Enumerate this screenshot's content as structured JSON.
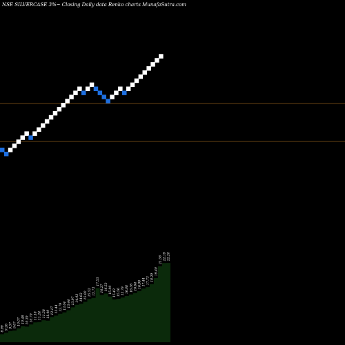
{
  "chart_data": {
    "type": "renko",
    "title": "NSE SILVERCASE 3%~  Closing Daily data  Renko  charts MunafaSutra.com",
    "colors": {
      "background": "#000000",
      "up_brick": "#ffffff",
      "down_brick": "#1e6fe0",
      "reference_line": "#8a5a1a",
      "volume_fill": "#0b2a0b",
      "volume_top": "#000000"
    },
    "brick_directions": [
      "down",
      "down",
      "up",
      "up",
      "up",
      "up",
      "up",
      "down",
      "up",
      "up",
      "up",
      "up",
      "up",
      "up",
      "up",
      "up",
      "up",
      "up",
      "up",
      "up",
      "down",
      "up",
      "up",
      "down",
      "down",
      "down",
      "down",
      "up",
      "up",
      "up",
      "down",
      "up",
      "up",
      "up",
      "up",
      "up",
      "up",
      "up",
      "up",
      "up"
    ],
    "reference_lines": [
      150,
      205
    ],
    "volume_labels": [
      "8.99",
      "9.26",
      "9.57",
      "9.67",
      "10.07",
      "10.48",
      "10.39",
      "10.79",
      "11.18",
      "11.24",
      "11.58",
      "11.49",
      "12.17",
      "12.44",
      "12.79",
      "13.04",
      "13.44",
      "13.97",
      "14.43",
      "14.63",
      "15.00",
      "15.52",
      "15.73",
      "17.53",
      "16.27",
      "16.53",
      "15.99",
      "15.43",
      "15.56",
      "15.79",
      "16.08",
      "16.36",
      "16.64",
      "16.98",
      "17.44",
      "17.73",
      "18.29",
      "19.40",
      "21.58",
      "22.19",
      "22.20"
    ]
  }
}
